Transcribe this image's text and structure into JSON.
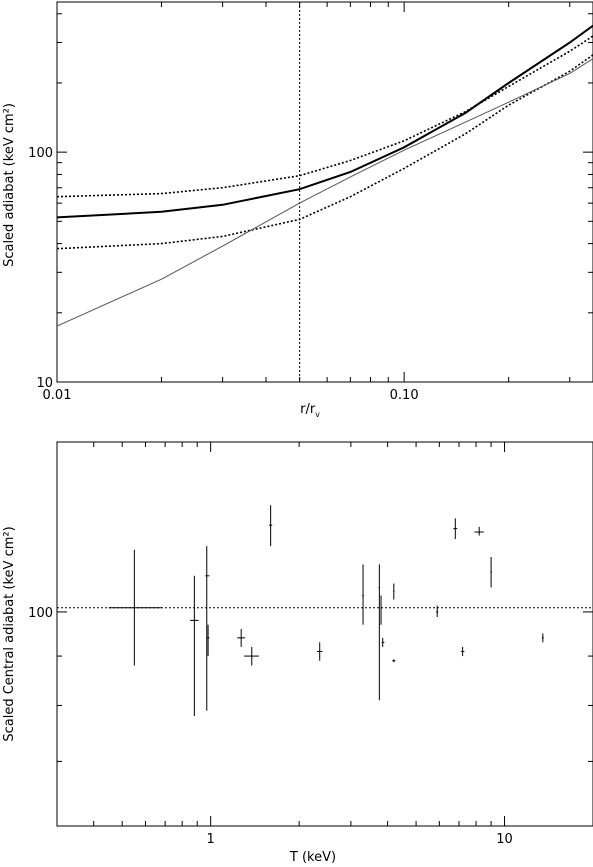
{
  "chart_data": [
    {
      "type": "line",
      "xlabel": "r/r",
      "xlabel_subscript": "v",
      "ylabel": "Scaled adiabat  (keV cm²)",
      "xscale": "log",
      "yscale": "log",
      "xlim": [
        0.01,
        0.35
      ],
      "ylim": [
        10,
        450
      ],
      "x_ticks": [
        0.01,
        0.1
      ],
      "x_tick_labels": [
        "0.01",
        "0.10"
      ],
      "y_ticks": [
        10,
        100
      ],
      "y_tick_labels": [
        "10",
        "100"
      ],
      "vline": 0.05,
      "series": [
        {
          "style": "solid-thick",
          "points": [
            [
              0.01,
              52
            ],
            [
              0.02,
              55
            ],
            [
              0.03,
              59
            ],
            [
              0.05,
              69
            ],
            [
              0.07,
              82
            ],
            [
              0.1,
              105
            ],
            [
              0.15,
              148
            ],
            [
              0.2,
              200
            ],
            [
              0.3,
              300
            ],
            [
              0.35,
              355
            ]
          ]
        },
        {
          "style": "dotted-upper",
          "points": [
            [
              0.01,
              64
            ],
            [
              0.02,
              66
            ],
            [
              0.03,
              70
            ],
            [
              0.05,
              79
            ],
            [
              0.07,
              92
            ],
            [
              0.1,
              112
            ],
            [
              0.15,
              150
            ],
            [
              0.2,
              193
            ],
            [
              0.3,
              275
            ],
            [
              0.35,
              320
            ]
          ]
        },
        {
          "style": "dotted-lower",
          "points": [
            [
              0.01,
              38
            ],
            [
              0.02,
              40
            ],
            [
              0.03,
              43
            ],
            [
              0.05,
              51
            ],
            [
              0.07,
              64
            ],
            [
              0.1,
              85
            ],
            [
              0.15,
              120
            ],
            [
              0.2,
              160
            ],
            [
              0.3,
              225
            ],
            [
              0.35,
              265
            ]
          ]
        },
        {
          "style": "thin-gray",
          "points": [
            [
              0.01,
              17.5
            ],
            [
              0.02,
              28
            ],
            [
              0.03,
              39
            ],
            [
              0.05,
              60
            ],
            [
              0.07,
              78
            ],
            [
              0.1,
              102
            ],
            [
              0.15,
              135
            ],
            [
              0.2,
              165
            ],
            [
              0.3,
              220
            ],
            [
              0.35,
              255
            ]
          ]
        }
      ]
    },
    {
      "type": "scatter",
      "xlabel": "T (keV)",
      "ylabel": "Scaled Central adiabat (keV cm²)",
      "xscale": "log",
      "yscale": "log",
      "xlim": [
        0.3,
        20
      ],
      "ylim": [
        60,
        150
      ],
      "x_ticks": [
        1,
        10
      ],
      "x_tick_labels": [
        "1",
        "10"
      ],
      "y_ticks": [
        100
      ],
      "y_tick_labels": [
        "100"
      ],
      "hline": 101,
      "points": [
        {
          "x": 0.55,
          "y": 101,
          "xerr": [
            0.45,
            0.68
          ],
          "yerr": [
            88,
            116
          ]
        },
        {
          "x": 0.88,
          "y": 98,
          "xerr": [
            0.85,
            0.91
          ],
          "yerr": [
            78,
            109
          ]
        },
        {
          "x": 0.97,
          "y": 109,
          "xerr": [
            0.96,
            0.99
          ],
          "yerr": [
            79,
            117
          ]
        },
        {
          "x": 0.98,
          "y": 94,
          "xerr": [
            0.97,
            0.99
          ],
          "yerr": [
            90,
            97
          ]
        },
        {
          "x": 1.27,
          "y": 94,
          "xerr": [
            1.23,
            1.31
          ],
          "yerr": [
            92,
            96
          ]
        },
        {
          "x": 1.38,
          "y": 90,
          "xerr": [
            1.3,
            1.46
          ],
          "yerr": [
            88,
            92
          ]
        },
        {
          "x": 1.6,
          "y": 123,
          "xerr": [
            1.58,
            1.62
          ],
          "yerr": [
            117,
            129
          ]
        },
        {
          "x": 2.35,
          "y": 91,
          "xerr": [
            2.3,
            2.4
          ],
          "yerr": [
            89,
            93
          ]
        },
        {
          "x": 3.3,
          "y": 104,
          "xerr": [
            3.28,
            3.32
          ],
          "yerr": [
            97,
            112
          ]
        },
        {
          "x": 3.75,
          "y": 106,
          "xerr": [
            3.73,
            3.77
          ],
          "yerr": [
            81,
            112
          ]
        },
        {
          "x": 3.8,
          "y": 102,
          "xerr": [
            3.79,
            3.81
          ],
          "yerr": [
            97,
            104
          ]
        },
        {
          "x": 3.85,
          "y": 93,
          "xerr": [
            3.82,
            3.9
          ],
          "yerr": [
            92,
            94
          ]
        },
        {
          "x": 4.2,
          "y": 105,
          "xerr": [
            4.18,
            4.22
          ],
          "yerr": [
            103,
            107
          ]
        },
        {
          "x": 4.2,
          "y": 89,
          "xerr": [
            4.15,
            4.25
          ],
          "yerr": [
            88.7,
            89.3
          ]
        },
        {
          "x": 5.9,
          "y": 100,
          "xerr": [
            5.85,
            5.95
          ],
          "yerr": [
            98.8,
            101.5
          ]
        },
        {
          "x": 6.8,
          "y": 122,
          "xerr": [
            6.7,
            6.9
          ],
          "yerr": [
            119,
            125
          ]
        },
        {
          "x": 7.2,
          "y": 91,
          "xerr": [
            7.1,
            7.3
          ],
          "yerr": [
            90,
            92
          ]
        },
        {
          "x": 8.2,
          "y": 121,
          "xerr": [
            7.9,
            8.5
          ],
          "yerr": [
            120,
            122.5
          ]
        },
        {
          "x": 9.0,
          "y": 110,
          "xerr": [
            8.95,
            9.05
          ],
          "yerr": [
            106,
            114
          ]
        },
        {
          "x": 13.5,
          "y": 94,
          "xerr": [
            13.4,
            13.6
          ],
          "yerr": [
            93,
            95
          ]
        }
      ]
    }
  ]
}
